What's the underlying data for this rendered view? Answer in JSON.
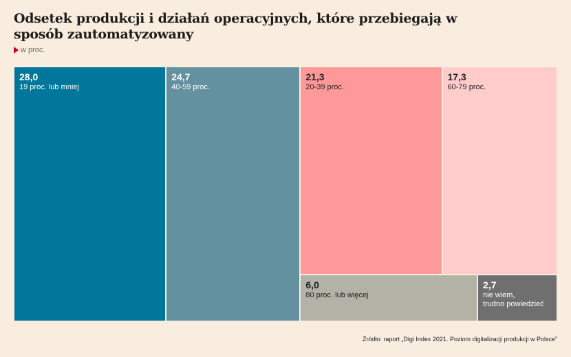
{
  "title": "Odsetek produkcji i działań operacyjnych, które przebiegają w sposób zautomatyzowany",
  "unit": "w proc.",
  "source": "Źródło: raport „Digi Index 2021. Poziom digitalizacji produkcji w Polsce”",
  "colors": {
    "background": "#f9ede0",
    "accent": "#d0021b"
  },
  "chart_data": {
    "type": "treemap",
    "title": "Odsetek produkcji i działań operacyjnych, które przebiegają w sposób zautomatyzowany",
    "unit": "w proc.",
    "items": [
      {
        "label": "19 proc. lub mniej",
        "value": 28.0,
        "value_label": "28,0",
        "color": "#00769b",
        "text": "dark"
      },
      {
        "label": "40-59 proc.",
        "value": 24.7,
        "value_label": "24,7",
        "color": "#63919f",
        "text": "dark"
      },
      {
        "label": "20-39 proc.",
        "value": 21.3,
        "value_label": "21,3",
        "color": "#ff9999",
        "text": "light"
      },
      {
        "label": "60-79 proc.",
        "value": 17.3,
        "value_label": "17,3",
        "color": "#ffcccb",
        "text": "light"
      },
      {
        "label": "80 proc. lub więcej",
        "value": 6.0,
        "value_label": "6,0",
        "color": "#b2b2a7",
        "text": "light"
      },
      {
        "label": "nie wiem,\ntrudno powiedzieć",
        "value": 2.7,
        "value_label": "2,7",
        "color": "#6f6f6f",
        "text": "dark"
      }
    ]
  }
}
